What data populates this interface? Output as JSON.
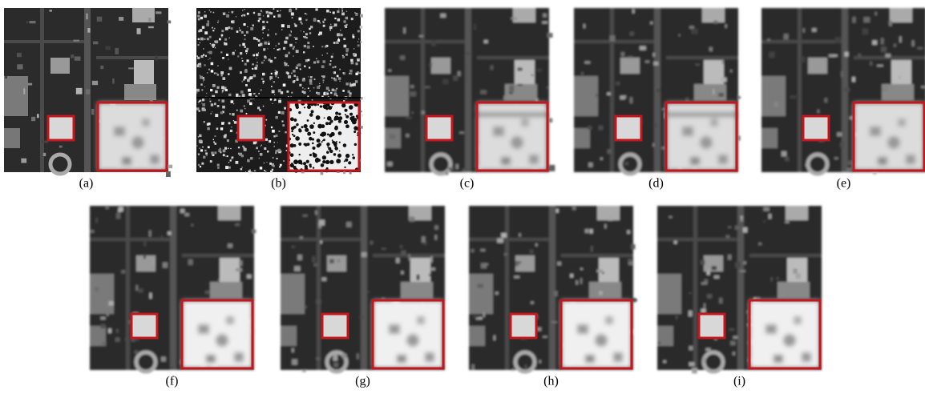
{
  "figure": {
    "panels": [
      {
        "label": "(a)"
      },
      {
        "label": "(b)"
      },
      {
        "label": "(c)"
      },
      {
        "label": "(d)"
      },
      {
        "label": "(e)"
      },
      {
        "label": "(f)"
      },
      {
        "label": "(g)"
      },
      {
        "label": "(h)"
      },
      {
        "label": "(i)"
      }
    ]
  }
}
